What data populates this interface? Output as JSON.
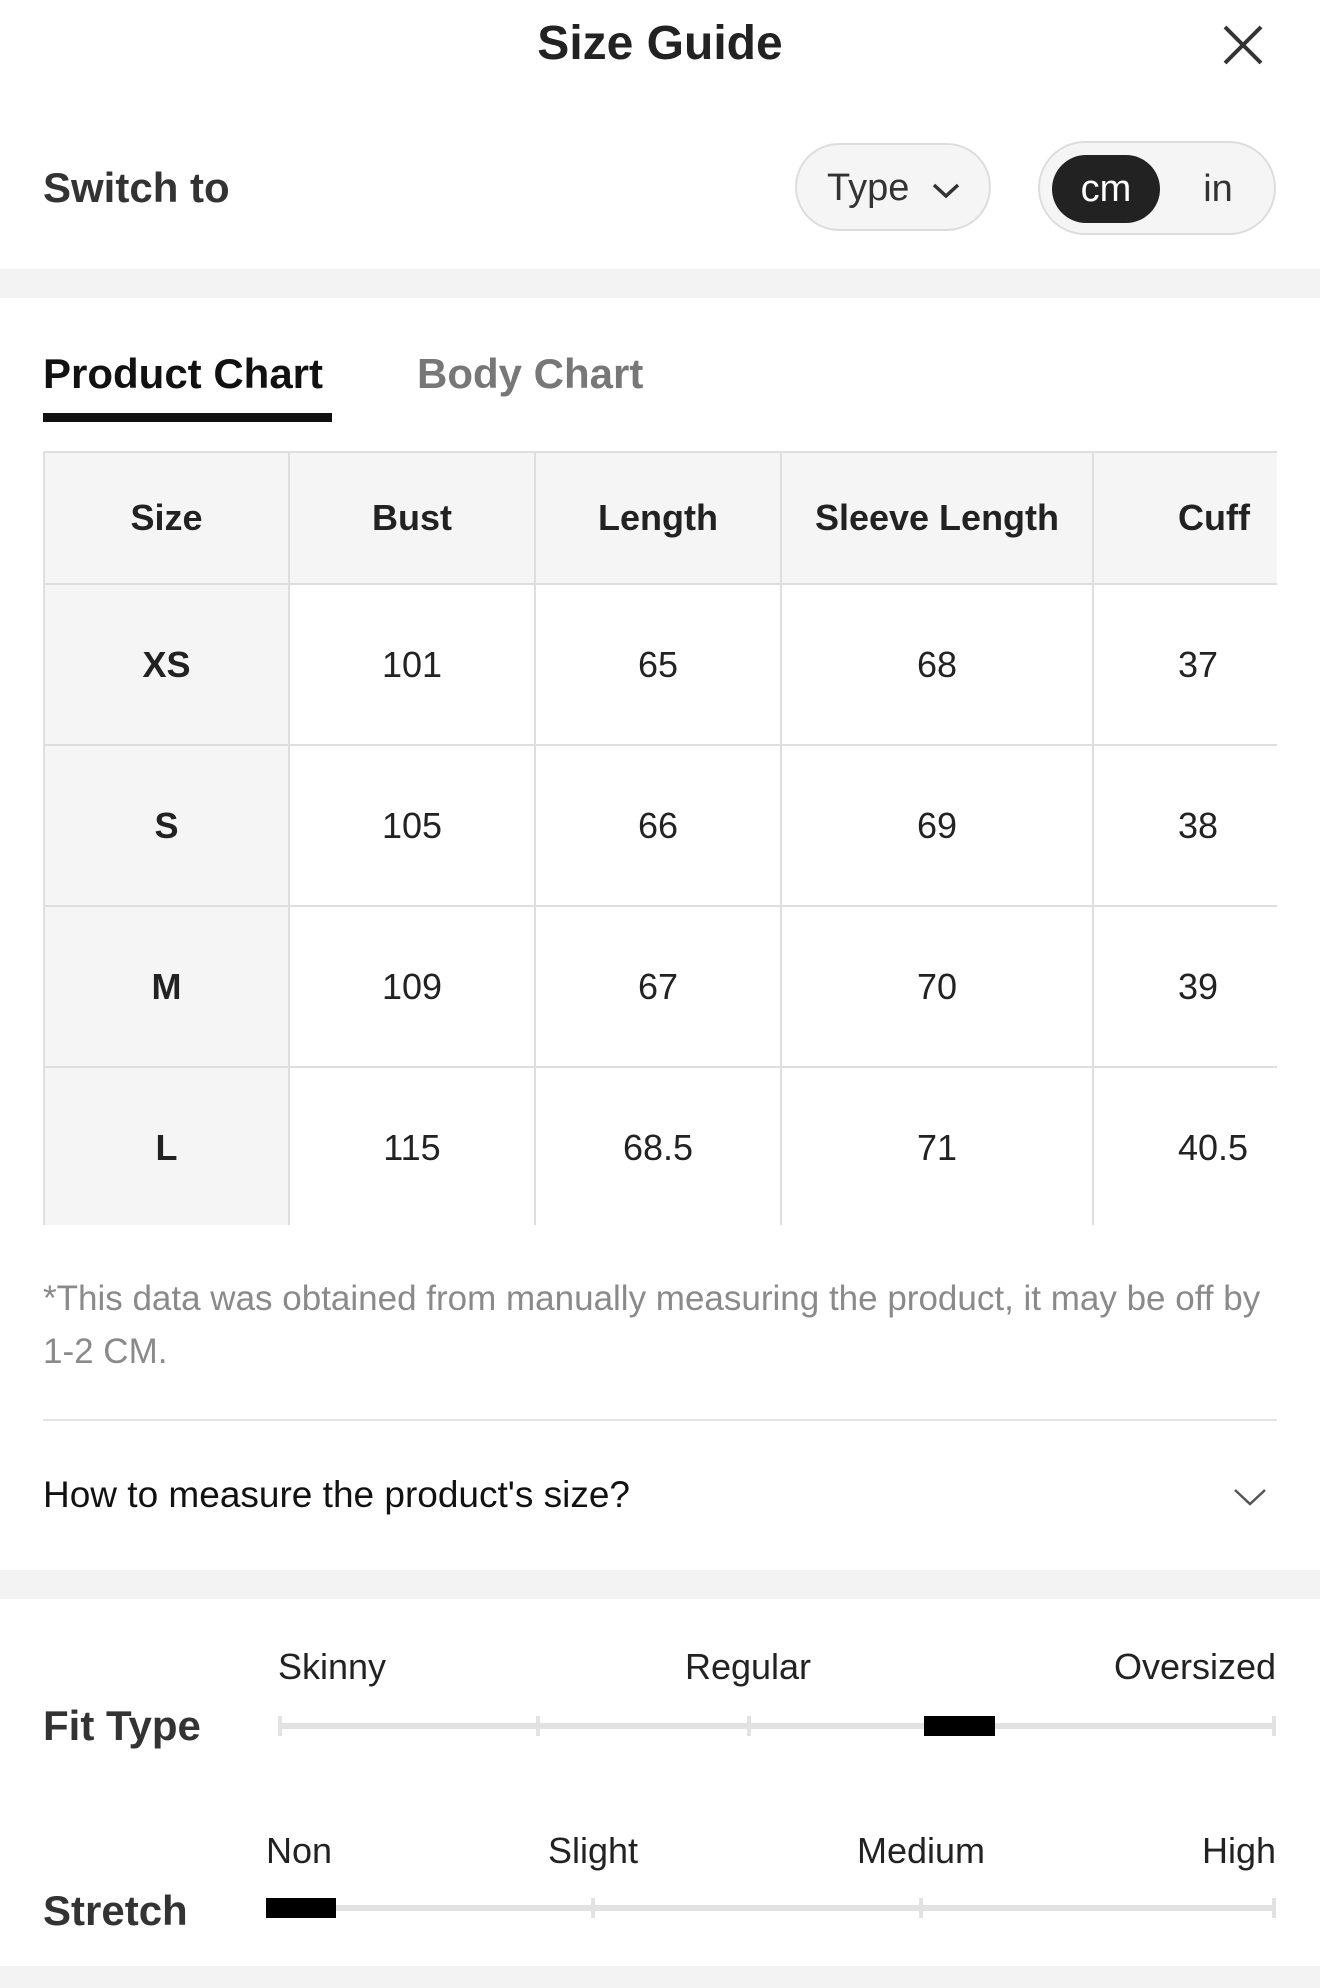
{
  "header": {
    "title": "Size Guide"
  },
  "switch": {
    "label": "Switch to",
    "type": "Type",
    "units": [
      "cm",
      "in"
    ]
  },
  "tabs": [
    "Product Chart",
    "Body Chart"
  ],
  "table": {
    "columns": [
      "Size",
      "Bust",
      "Length",
      "Sleeve Length",
      "Cuff"
    ],
    "rows": [
      [
        "XS",
        101,
        65,
        68,
        37
      ],
      [
        "S",
        105,
        66,
        69,
        38
      ],
      [
        "M",
        109,
        67,
        70,
        39
      ],
      [
        "L",
        115,
        68.5,
        71,
        40.5
      ]
    ]
  },
  "note": "*This data was obtained from manually measuring the product, it may be off by 1-2 CM.",
  "measure": "How to measure the product's size?",
  "fit": {
    "label": "Fit Type",
    "scale": [
      "Skinny",
      "Regular",
      "Oversized"
    ]
  },
  "stretch": {
    "label": "Stretch",
    "scale": [
      "Non",
      "Slight",
      "Medium",
      "High"
    ]
  }
}
